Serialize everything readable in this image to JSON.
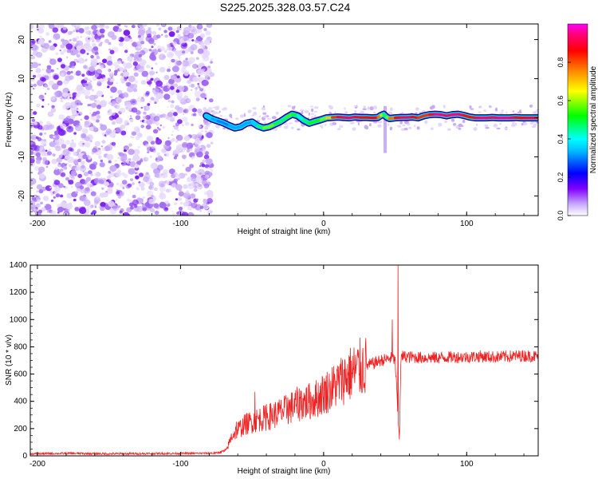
{
  "title": "S225.2025.328.03.57.C24",
  "chart_data": [
    {
      "type": "heatmap",
      "title": "S225.2025.328.03.57.C24",
      "xlabel": "Height of straight line (km)",
      "ylabel": "Frequency (Hz)",
      "xlim": [
        -205,
        150
      ],
      "ylim": [
        -25,
        24
      ],
      "xticks": [
        -200,
        -100,
        0,
        100
      ],
      "yticks": [
        -20,
        -10,
        0,
        10,
        20
      ],
      "noise_region": [
        -205,
        -78
      ],
      "colorbar": {
        "label": "Normalized spectral amplitude",
        "range": [
          0,
          1
        ],
        "ticks": [
          0.0,
          0.2,
          0.4,
          0.6,
          0.8
        ],
        "colors": [
          "#ffffff",
          "#8000ff",
          "#0000ff",
          "#00ffff",
          "#00ff00",
          "#ffff00",
          "#ff8000",
          "#ff0000",
          "#ff00ff"
        ]
      },
      "ridge": {
        "x": [
          -82,
          -78,
          -74,
          -70,
          -66,
          -62,
          -58,
          -54,
          -50,
          -46,
          -42,
          -38,
          -34,
          -30,
          -26,
          -22,
          -18,
          -14,
          -10,
          -6,
          -2,
          2,
          6,
          10,
          14,
          18,
          22,
          26,
          30,
          34,
          38,
          40,
          42,
          44,
          46,
          50,
          54,
          58,
          62,
          66,
          70,
          74,
          78,
          82,
          86,
          90,
          94,
          98,
          102,
          106,
          110,
          114,
          118,
          122,
          126,
          130,
          134,
          138,
          142,
          146,
          150
        ],
        "freq": [
          0.5,
          -0.3,
          -0.8,
          -1.3,
          -2.0,
          -2.6,
          -2.3,
          -1.4,
          -1.1,
          -2.1,
          -2.6,
          -2.3,
          -1.6,
          -0.9,
          0.1,
          0.9,
          0.5,
          -0.6,
          -1.4,
          -0.9,
          -0.5,
          0.0,
          0.1,
          0.2,
          0.1,
          0.0,
          0.2,
          0.1,
          0.1,
          0.0,
          0.1,
          0.6,
          0.9,
          0.2,
          -0.2,
          0.0,
          0.1,
          0.1,
          0.2,
          0.0,
          0.5,
          0.8,
          0.9,
          0.8,
          0.5,
          0.8,
          0.9,
          0.6,
          0.2,
          0.0,
          0.0,
          0.0,
          0.1,
          0.0,
          0.0,
          0.0,
          0.1,
          0.0,
          0.0,
          0.0,
          0.0
        ],
        "amp": [
          0.35,
          0.35,
          0.3,
          0.3,
          0.3,
          0.35,
          0.3,
          0.35,
          0.3,
          0.4,
          0.55,
          0.6,
          0.55,
          0.45,
          0.5,
          0.6,
          0.4,
          0.45,
          0.5,
          0.55,
          0.5,
          0.65,
          0.75,
          0.9,
          0.9,
          0.95,
          0.9,
          0.9,
          0.85,
          0.9,
          0.85,
          0.7,
          0.5,
          0.45,
          0.7,
          0.85,
          0.9,
          0.95,
          0.9,
          0.85,
          0.8,
          0.85,
          0.95,
          0.95,
          0.9,
          0.95,
          0.95,
          0.9,
          0.8,
          0.9,
          0.95,
          0.95,
          0.9,
          0.95,
          0.95,
          0.95,
          0.9,
          0.85,
          0.9,
          0.9,
          0.9
        ]
      }
    },
    {
      "type": "line",
      "xlabel": "Height of straight line (km)",
      "ylabel": "SNR (10 * v/v)",
      "xlim": [
        -205,
        150
      ],
      "ylim": [
        0,
        1400
      ],
      "xticks": [
        -200,
        -100,
        0,
        100
      ],
      "yticks": [
        0,
        200,
        400,
        600,
        800,
        1000,
        1200,
        1400
      ],
      "color": "#ee2222",
      "series": [
        {
          "name": "SNR",
          "x": [
            -205,
            -180,
            -150,
            -120,
            -90,
            -75,
            -68,
            -64,
            -60,
            -55,
            -50,
            -45,
            -40,
            -35,
            -30,
            -25,
            -20,
            -15,
            -10,
            -5,
            0,
            5,
            10,
            15,
            20,
            25,
            30,
            35,
            40,
            45,
            48,
            50,
            51,
            52,
            53,
            54,
            55,
            60,
            70,
            80,
            90,
            100,
            110,
            120,
            130,
            140,
            150
          ],
          "y": [
            15,
            18,
            15,
            17,
            18,
            20,
            40,
            150,
            190,
            230,
            250,
            270,
            280,
            300,
            320,
            340,
            370,
            390,
            400,
            420,
            460,
            490,
            530,
            580,
            610,
            640,
            660,
            680,
            700,
            710,
            720,
            700,
            500,
            280,
            120,
            700,
            730,
            725,
            720,
            720,
            725,
            725,
            730,
            725,
            730,
            735,
            730
          ],
          "spikes": [
            {
              "x": -61,
              "y": 250
            },
            {
              "x": -48,
              "y": 470
            },
            {
              "x": -40,
              "y": 380
            },
            {
              "x": -25,
              "y": 430
            },
            {
              "x": -16,
              "y": 480
            },
            {
              "x": -9,
              "y": 470
            },
            {
              "x": 5,
              "y": 550
            },
            {
              "x": 48,
              "y": 1000
            },
            {
              "x": 52,
              "y": 1400
            },
            {
              "x": 53,
              "y": 120
            }
          ]
        }
      ]
    }
  ]
}
